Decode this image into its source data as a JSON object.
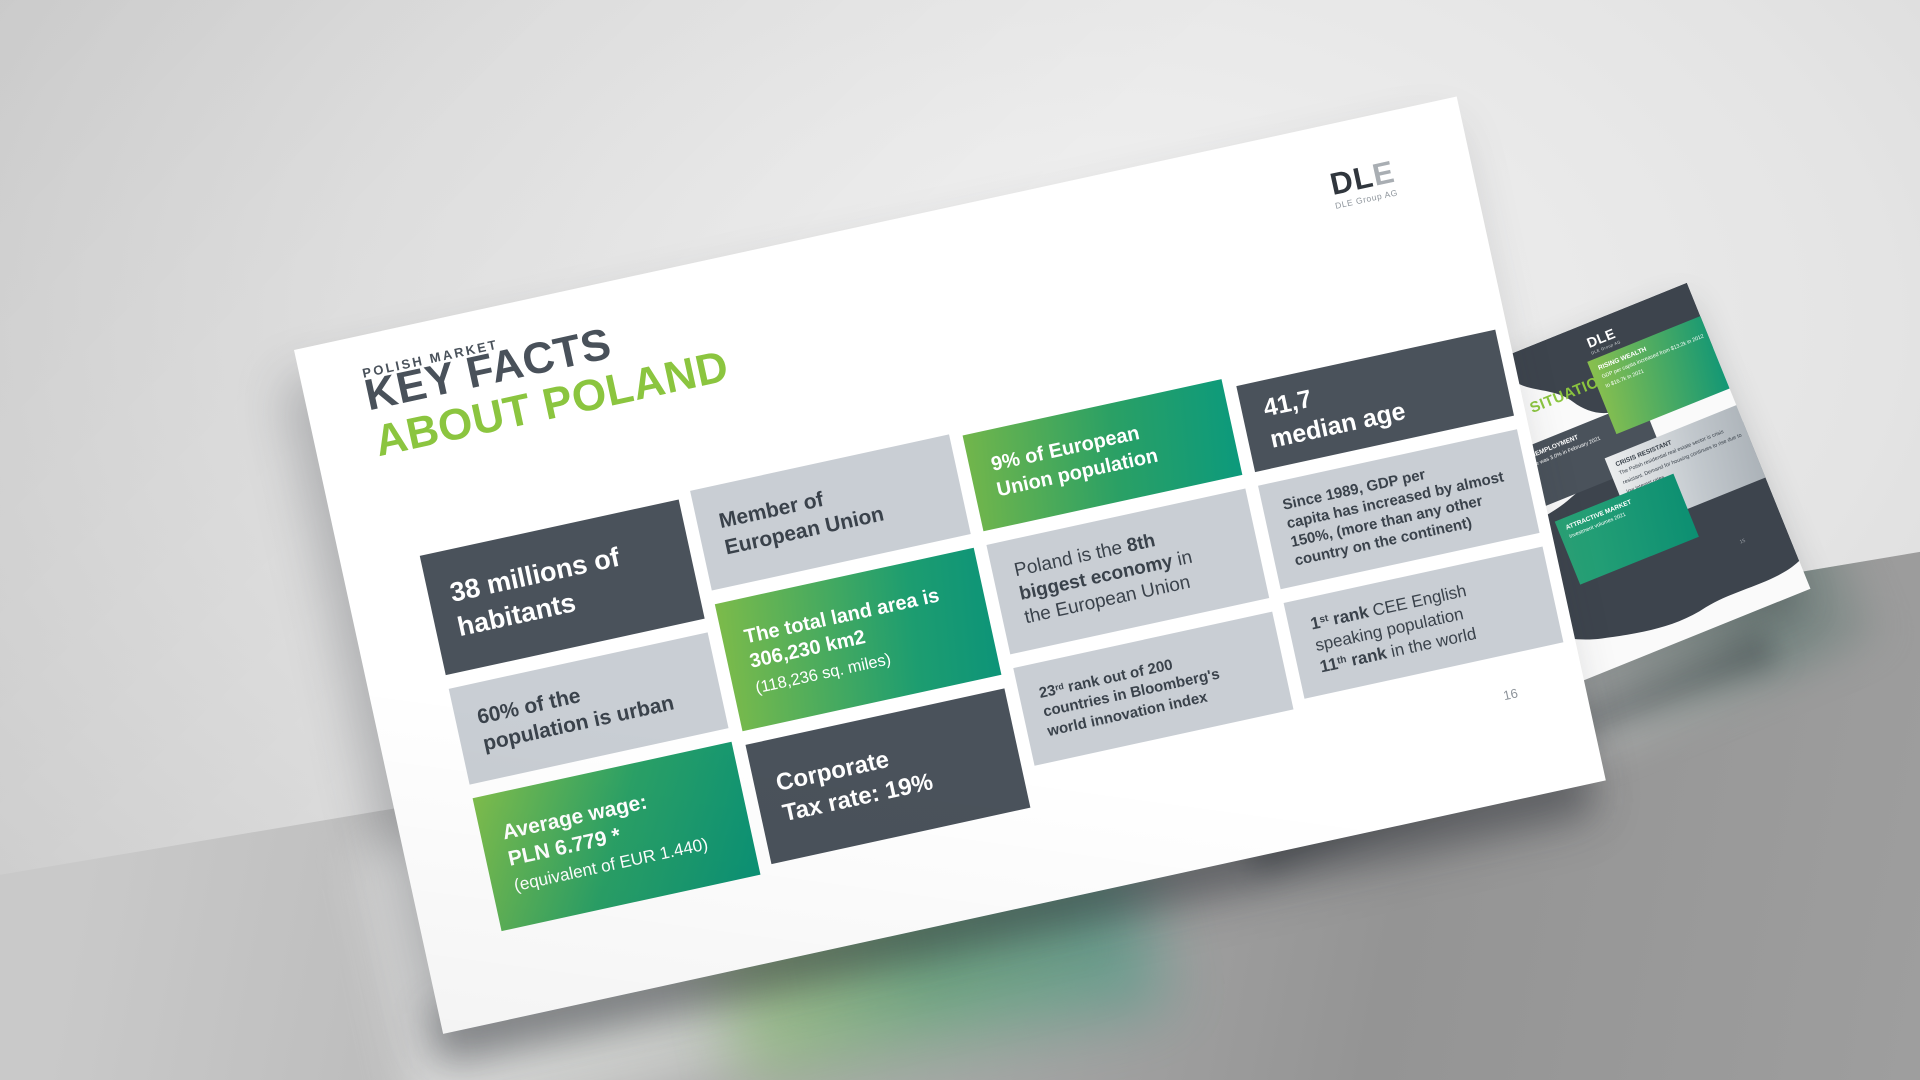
{
  "colors": {
    "accent_green": "#8bc53f",
    "tile_dark": "#4a525b",
    "tile_light_gray": "#c9ced4",
    "green_gradient_start": "#7cbb4c",
    "green_gradient_end": "#0d9577",
    "title_dark": "#49515a"
  },
  "main_slide": {
    "eyebrow": "POLISH MARKET",
    "title_line1": "KEY FACTS",
    "title_line2": "ABOUT POLAND",
    "logo": {
      "dark": "DL",
      "light": "E",
      "sub": "DLE Group AG"
    },
    "page_number": "16",
    "tiles": [
      {
        "id": "habitants",
        "segments": [
          {
            "t": "38 millions of"
          },
          {
            "br": true
          },
          {
            "t": "habitants"
          }
        ]
      },
      {
        "id": "urban",
        "segments": [
          {
            "t": "60% of the"
          },
          {
            "br": true
          },
          {
            "t": "population is urban"
          }
        ]
      },
      {
        "id": "average-wage",
        "segments": [
          {
            "t": "Average wage:"
          },
          {
            "br": true
          },
          {
            "t": "PLN 6.779 *"
          },
          {
            "br": true
          },
          {
            "t": "(equivalent of EUR 1.440)",
            "b": false,
            "small": true
          }
        ]
      },
      {
        "id": "eu-member",
        "segments": [
          {
            "t": "Member of"
          },
          {
            "br": true
          },
          {
            "t": "European Union"
          }
        ]
      },
      {
        "id": "land-area",
        "segments": [
          {
            "t": "The total land area is"
          },
          {
            "br": true
          },
          {
            "t": "306,230 km2"
          },
          {
            "br": true
          },
          {
            "t": "(118,236 sq. miles)",
            "b": false,
            "small": true
          }
        ]
      },
      {
        "id": "corporate-tax",
        "segments": [
          {
            "t": "Corporate"
          },
          {
            "br": true
          },
          {
            "t": "Tax rate: 19%"
          }
        ]
      },
      {
        "id": "eu-population",
        "segments": [
          {
            "t": "9% of European"
          },
          {
            "br": true
          },
          {
            "t": "Union population"
          }
        ]
      },
      {
        "id": "economy",
        "segments": [
          {
            "t": "Poland is the "
          },
          {
            "t": "8th",
            "b": true
          },
          {
            "br": true
          },
          {
            "t": "biggest economy",
            "b": true
          },
          {
            "t": " in"
          },
          {
            "br": true
          },
          {
            "t": "the European Union"
          }
        ]
      },
      {
        "id": "bloomberg-rank",
        "segments": [
          {
            "t": "23"
          },
          {
            "t": "rd",
            "sup": true
          },
          {
            "t": " rank out of 200"
          },
          {
            "br": true
          },
          {
            "t": "countries in Bloomberg's"
          },
          {
            "br": true
          },
          {
            "t": "world innovation index"
          }
        ]
      },
      {
        "id": "median-age",
        "segments": [
          {
            "t": "41,7"
          },
          {
            "br": true
          },
          {
            "t": "median age"
          }
        ]
      },
      {
        "id": "gdp-growth",
        "segments": [
          {
            "t": "Since 1989, GDP per"
          },
          {
            "br": true
          },
          {
            "t": "capita has increased by almost"
          },
          {
            "br": true
          },
          {
            "t": "150%, (more than any other"
          },
          {
            "br": true
          },
          {
            "t": "country on the continent)"
          }
        ]
      },
      {
        "id": "english-rank",
        "segments": [
          {
            "t": "1",
            "b": true
          },
          {
            "t": "st",
            "b": true,
            "sup": true
          },
          {
            "t": " rank ",
            "b": true
          },
          {
            "t": "CEE English"
          },
          {
            "br": true
          },
          {
            "t": "speaking population"
          },
          {
            "br": true
          },
          {
            "t": "11",
            "b": true
          },
          {
            "t": "th",
            "b": true,
            "sup": true
          },
          {
            "t": " rank ",
            "b": true
          },
          {
            "t": "in the world"
          }
        ]
      }
    ]
  },
  "background_slide": {
    "heading": "SITUATION",
    "logo": {
      "text": "DLE",
      "sub": "DLE Group AG"
    },
    "page_number": "15",
    "tiles": [
      {
        "id": "unemployment",
        "segments": [
          {
            "t": "UNEMPLOYMENT"
          },
          {
            "br": true
          },
          {
            "t": "rate was 3.0% in February 2021",
            "b": false,
            "small": true
          }
        ]
      },
      {
        "id": "rising-wealth",
        "segments": [
          {
            "t": "RISING WEALTH"
          },
          {
            "br": true
          },
          {
            "t": "GDP per capita increased from $13.2k in 2012 to $16.7k in 2021",
            "b": false,
            "small": true
          }
        ]
      },
      {
        "id": "crisis-resistant",
        "segments": [
          {
            "t": "CRISIS RESISTANT"
          },
          {
            "br": true
          },
          {
            "t": "The Polish residential real estate sector is crisis resistant. Demand for housing continues to rise due to low interest rates.",
            "b": false,
            "small": true
          }
        ]
      },
      {
        "id": "attractive-market",
        "segments": [
          {
            "t": "ATTRACTIVE MARKET"
          },
          {
            "br": true
          },
          {
            "t": "investment volumes 2021",
            "b": false,
            "small": true
          }
        ]
      }
    ]
  }
}
